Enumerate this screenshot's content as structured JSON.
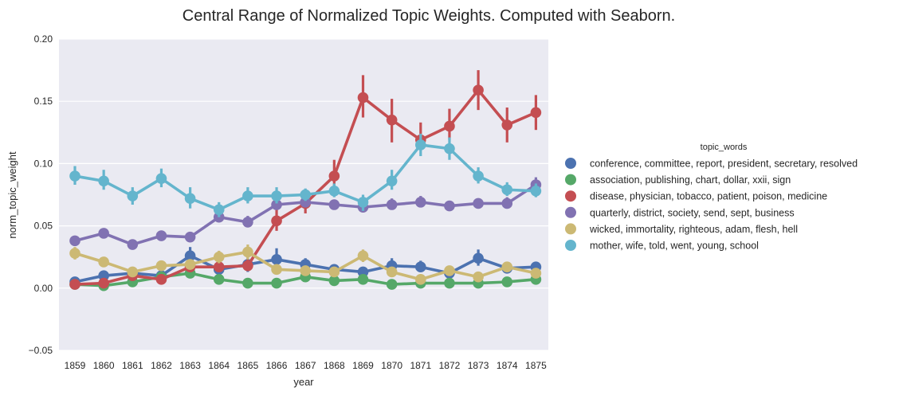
{
  "chart_data": {
    "type": "line",
    "title": "Central Range of Normalized Topic Weights. Computed with Seaborn.",
    "xlabel": "year",
    "ylabel": "norm_topic_weight",
    "ylim": [
      -0.05,
      0.2
    ],
    "yticks": [
      "0.20",
      "0.15",
      "0.10",
      "0.05",
      "0.00",
      "−0.05"
    ],
    "ytick_values": [
      0.2,
      0.15,
      0.1,
      0.05,
      0.0,
      -0.05
    ],
    "grid": true,
    "legend_title": "topic_words",
    "legend_position": "right",
    "categories": [
      "1859",
      "1860",
      "1861",
      "1862",
      "1863",
      "1864",
      "1865",
      "1866",
      "1867",
      "1868",
      "1869",
      "1870",
      "1871",
      "1872",
      "1873",
      "1874",
      "1875"
    ],
    "series": [
      {
        "name": "conference, committee, report, president, secretary, resolved",
        "color": "#4c72b0",
        "values": [
          0.005,
          0.01,
          0.012,
          0.01,
          0.026,
          0.015,
          0.019,
          0.023,
          0.019,
          0.015,
          0.013,
          0.018,
          0.017,
          0.012,
          0.024,
          0.016,
          0.017
        ],
        "lower": [
          0.003,
          0.007,
          0.009,
          0.008,
          0.019,
          0.011,
          0.013,
          0.016,
          0.015,
          0.012,
          0.01,
          0.013,
          0.013,
          0.009,
          0.018,
          0.012,
          0.014
        ],
        "upper": [
          0.007,
          0.013,
          0.015,
          0.013,
          0.033,
          0.02,
          0.025,
          0.032,
          0.024,
          0.019,
          0.017,
          0.024,
          0.022,
          0.016,
          0.031,
          0.021,
          0.021
        ]
      },
      {
        "name": "association, publishing, chart, dollar, xxii, sign",
        "color": "#55a868",
        "values": [
          0.003,
          0.002,
          0.005,
          0.009,
          0.012,
          0.007,
          0.004,
          0.004,
          0.009,
          0.006,
          0.007,
          0.003,
          0.004,
          0.004,
          0.004,
          0.005,
          0.007
        ],
        "lower": [
          0.002,
          0.001,
          0.004,
          0.007,
          0.01,
          0.005,
          0.003,
          0.003,
          0.007,
          0.005,
          0.005,
          0.002,
          0.003,
          0.003,
          0.003,
          0.004,
          0.005
        ],
        "upper": [
          0.004,
          0.003,
          0.007,
          0.011,
          0.015,
          0.009,
          0.005,
          0.005,
          0.011,
          0.008,
          0.009,
          0.004,
          0.005,
          0.005,
          0.005,
          0.007,
          0.009
        ]
      },
      {
        "name": "disease, physician, tobacco, patient, poison, medicine",
        "color": "#c44e52",
        "values": [
          0.003,
          0.004,
          0.01,
          0.007,
          0.017,
          0.017,
          0.018,
          0.054,
          0.068,
          0.09,
          0.153,
          0.135,
          0.119,
          0.13,
          0.159,
          0.131,
          0.141
        ],
        "lower": [
          0.002,
          0.003,
          0.008,
          0.005,
          0.014,
          0.014,
          0.014,
          0.046,
          0.06,
          0.078,
          0.137,
          0.117,
          0.112,
          0.119,
          0.143,
          0.117,
          0.127
        ],
        "upper": [
          0.004,
          0.005,
          0.012,
          0.009,
          0.02,
          0.021,
          0.023,
          0.063,
          0.076,
          0.103,
          0.171,
          0.152,
          0.133,
          0.144,
          0.175,
          0.145,
          0.155
        ]
      },
      {
        "name": "quarterly, district, society, send, sept, business",
        "color": "#8172b2",
        "values": [
          0.038,
          0.044,
          0.035,
          0.042,
          0.041,
          0.057,
          0.053,
          0.067,
          0.069,
          0.067,
          0.065,
          0.067,
          0.069,
          0.066,
          0.068,
          0.068,
          0.083
        ],
        "lower": [
          0.035,
          0.041,
          0.032,
          0.039,
          0.037,
          0.053,
          0.049,
          0.063,
          0.065,
          0.064,
          0.062,
          0.063,
          0.065,
          0.062,
          0.064,
          0.064,
          0.077
        ],
        "upper": [
          0.042,
          0.048,
          0.039,
          0.045,
          0.045,
          0.061,
          0.058,
          0.072,
          0.074,
          0.071,
          0.069,
          0.072,
          0.074,
          0.07,
          0.072,
          0.073,
          0.089
        ]
      },
      {
        "name": "wicked, immortality, righteous, adam, flesh, hell",
        "color": "#ccb974",
        "values": [
          0.028,
          0.021,
          0.013,
          0.018,
          0.019,
          0.025,
          0.029,
          0.015,
          0.014,
          0.013,
          0.026,
          0.013,
          0.007,
          0.014,
          0.009,
          0.017,
          0.012
        ],
        "lower": [
          0.023,
          0.018,
          0.011,
          0.015,
          0.016,
          0.02,
          0.023,
          0.013,
          0.012,
          0.011,
          0.021,
          0.011,
          0.005,
          0.012,
          0.007,
          0.014,
          0.01
        ],
        "upper": [
          0.033,
          0.024,
          0.015,
          0.021,
          0.022,
          0.03,
          0.035,
          0.017,
          0.016,
          0.015,
          0.031,
          0.015,
          0.009,
          0.016,
          0.011,
          0.02,
          0.014
        ]
      },
      {
        "name": "mother, wife, told, went, young, school",
        "color": "#64b5cd",
        "values": [
          0.09,
          0.086,
          0.074,
          0.088,
          0.072,
          0.063,
          0.074,
          0.074,
          0.075,
          0.078,
          0.069,
          0.086,
          0.115,
          0.112,
          0.09,
          0.079,
          0.078
        ],
        "lower": [
          0.083,
          0.079,
          0.067,
          0.081,
          0.064,
          0.057,
          0.068,
          0.068,
          0.07,
          0.073,
          0.062,
          0.079,
          0.106,
          0.103,
          0.084,
          0.074,
          0.073
        ],
        "upper": [
          0.098,
          0.095,
          0.081,
          0.096,
          0.081,
          0.069,
          0.081,
          0.081,
          0.08,
          0.084,
          0.075,
          0.095,
          0.124,
          0.121,
          0.097,
          0.085,
          0.084
        ]
      }
    ]
  }
}
